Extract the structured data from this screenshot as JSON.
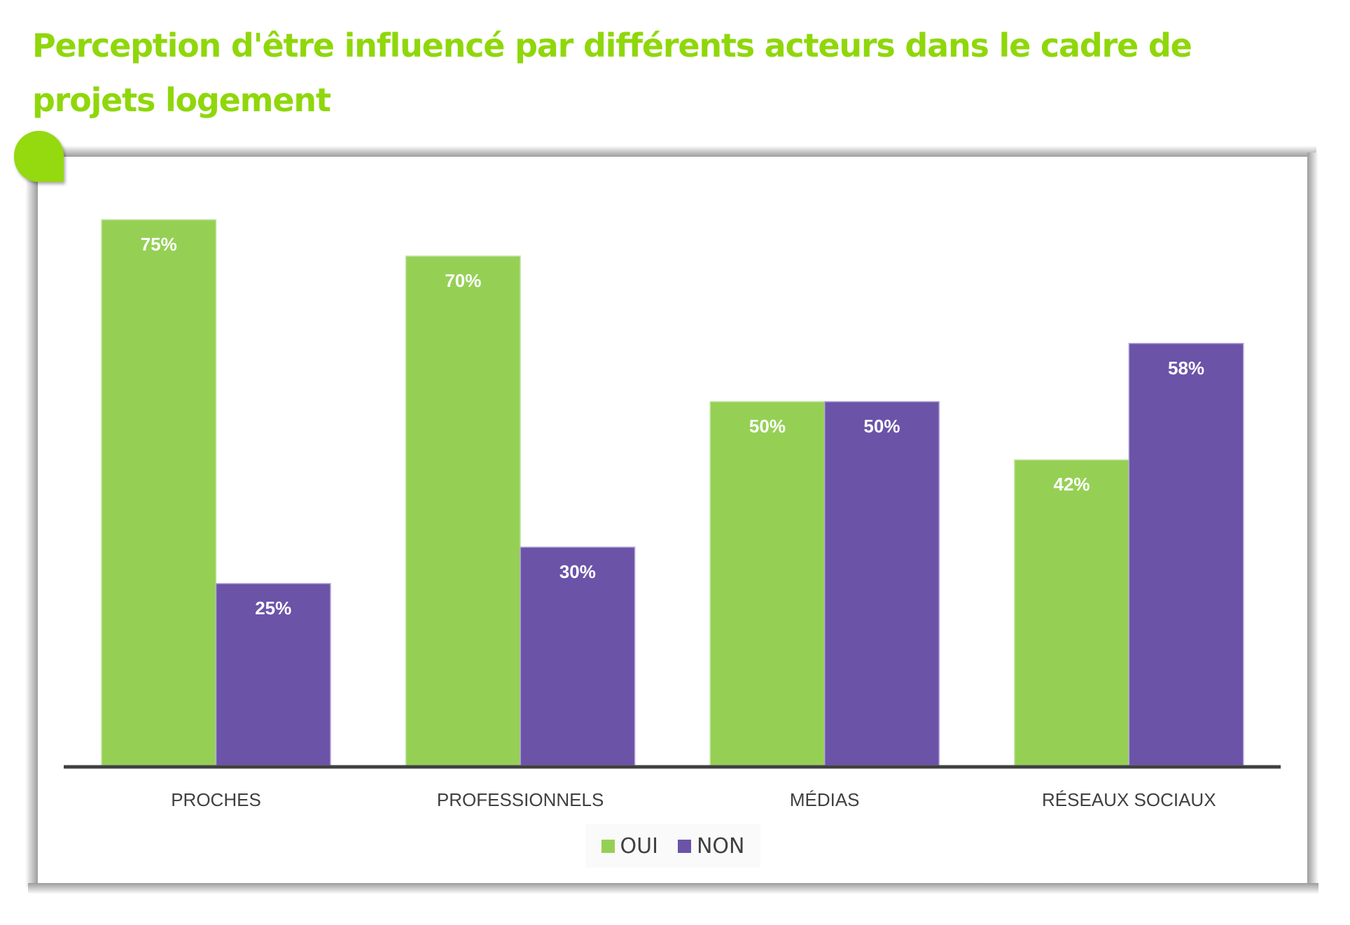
{
  "title": "Perception d'être influencé par différents acteurs dans le cadre de projets logement",
  "colors": {
    "title": "#8fd70b",
    "oui": "#95d055",
    "non": "#6b53a8",
    "axis": "#404040",
    "label": "#ffffff"
  },
  "chart_data": {
    "type": "bar",
    "title": "Perception d'être influencé par différents acteurs dans le cadre de projets logement",
    "categories": [
      "PROCHES",
      "PROFESSIONNELS",
      "MÉDIAS",
      "RÉSEAUX SOCIAUX"
    ],
    "series": [
      {
        "name": "OUI",
        "values": [
          75,
          70,
          50,
          42
        ],
        "labels": [
          "75%",
          "70%",
          "50%",
          "42%"
        ]
      },
      {
        "name": "NON",
        "values": [
          25,
          30,
          50,
          58
        ],
        "labels": [
          "25%",
          "30%",
          "50%",
          "58%"
        ]
      }
    ],
    "xlabel": "",
    "ylabel": "",
    "ylim": [
      0,
      80
    ],
    "grid": false,
    "legend": "bottom",
    "unit": "%"
  }
}
